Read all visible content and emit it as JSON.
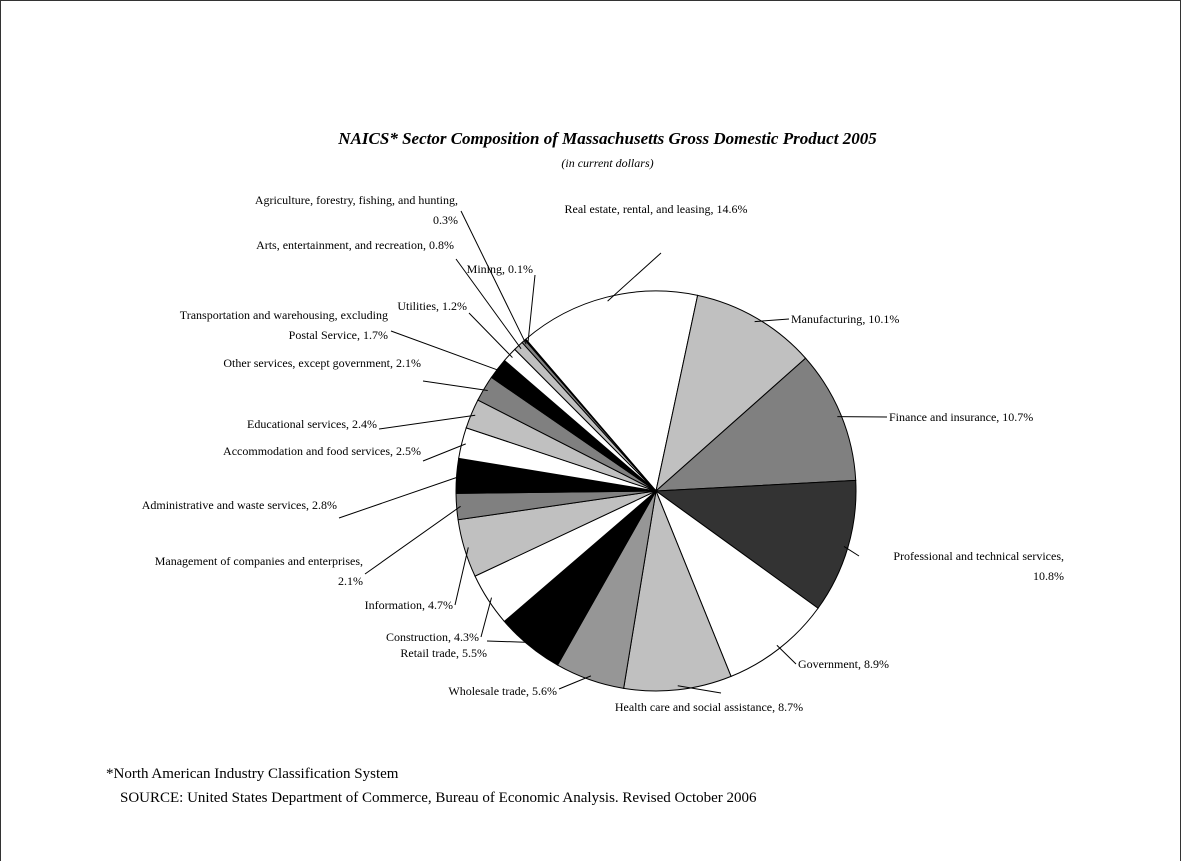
{
  "chart_data": {
    "type": "pie",
    "title": "NAICS* Sector Composition of Massachusetts Gross Domestic Product 2005",
    "subtitle": "(in current dollars)",
    "categories": [
      "Real estate, rental, and leasing",
      "Manufacturing",
      "Finance and insurance",
      "Professional and technical services",
      "Government",
      "Health care and social assistance",
      "Wholesale trade",
      "Retail trade",
      "Construction",
      "Information",
      "Management of companies and enterprises",
      "Administrative and waste services",
      "Accommodation and food services",
      "Educational services",
      "Other services, except government",
      "Transportation and warehousing, excluding Postal Service",
      "Utilities",
      "Arts, entertainment, and recreation",
      "Agriculture, forestry, fishing, and hunting",
      "Mining"
    ],
    "values": [
      14.6,
      10.1,
      10.7,
      10.8,
      8.9,
      8.7,
      5.6,
      5.5,
      4.3,
      4.7,
      2.1,
      2.8,
      2.5,
      2.4,
      2.1,
      1.7,
      1.2,
      0.8,
      0.3,
      0.1
    ],
    "value_labels": [
      "14.6%",
      "10.1%",
      "10.7%",
      "10.8%",
      "8.9%",
      "8.7%",
      "5.6%",
      "5.5%",
      "4.3%",
      "4.7%",
      "2.1%",
      "2.8%",
      "2.5%",
      "2.4%",
      "2.1%",
      "1.7%",
      "1.2%",
      "0.8%",
      "0.3%",
      "0.1%"
    ],
    "colors": [
      "#ffffff",
      "#c0c0c0",
      "#808080",
      "#333333",
      "#ffffff",
      "#c0c0c0",
      "#969696",
      "#000000",
      "#ffffff",
      "#c0c0c0",
      "#808080",
      "#000000",
      "#ffffff",
      "#c0c0c0",
      "#808080",
      "#000000",
      "#ffffff",
      "#c0c0c0",
      "#808080",
      "#000000"
    ],
    "footnote": "*North American Industry Classification System",
    "source": "SOURCE:  United States Department of Commerce, Bureau of Economic Analysis.  Revised October 2006"
  }
}
